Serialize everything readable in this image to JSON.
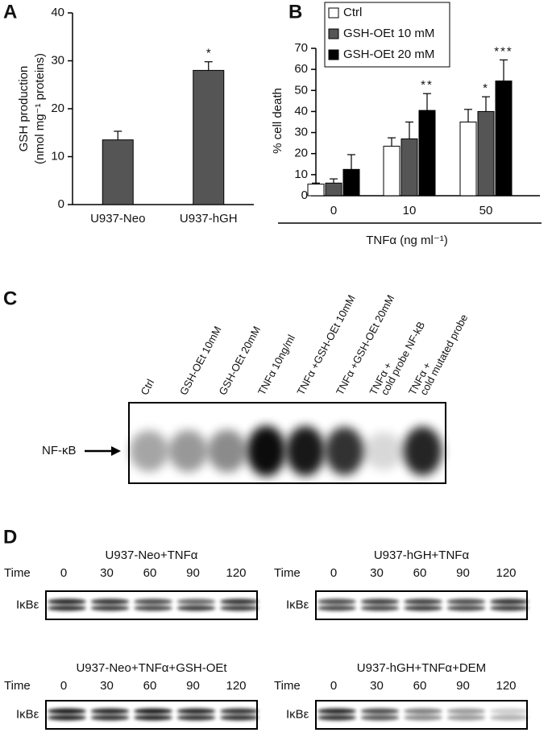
{
  "chart_data": [
    {
      "type": "bar",
      "panel": "A",
      "y_label": [
        "GSH production",
        "(nmol mg⁻¹ proteins)"
      ],
      "categories": [
        "U937-Neo",
        "U937-hGH"
      ],
      "values": [
        13.5,
        28
      ],
      "errors": [
        1.8,
        1.8
      ],
      "color": "#555555",
      "ylim": [
        0,
        40
      ],
      "yticks": [
        0,
        10,
        20,
        30,
        40
      ],
      "annotations": [
        "*"
      ]
    },
    {
      "type": "grouped-bar",
      "panel": "B",
      "y_label": "% cell death",
      "x_label": "TNFα (ng ml⁻¹)",
      "categories": [
        "0",
        "10",
        "50"
      ],
      "series": [
        {
          "name": "Ctrl",
          "color": "#ffffff",
          "values": [
            5.5,
            23.5,
            35
          ],
          "errors": [
            0.5,
            4,
            6
          ]
        },
        {
          "name": "GSH-OEt 10 mM",
          "color": "#555555",
          "values": [
            6,
            27,
            40
          ],
          "errors": [
            2,
            8,
            7
          ]
        },
        {
          "name": "GSH-OEt 20 mM",
          "color": "#000000",
          "values": [
            12.5,
            40.5,
            54.5
          ],
          "errors": [
            7,
            8,
            10
          ]
        }
      ],
      "ylim": [
        0,
        70
      ],
      "yticks": [
        0,
        10,
        20,
        30,
        40,
        50,
        60,
        70
      ],
      "annotations": [
        "**",
        "*",
        "***"
      ],
      "legend": "top-left"
    }
  ],
  "panels": {
    "C": {
      "label": "C",
      "lanes": [
        [
          "Ctrl"
        ],
        [
          "GSH-OEt 10mM"
        ],
        [
          "GSH-OEt 20mM"
        ],
        [
          "TNFα 10ng/ml"
        ],
        [
          "TNFα +GSH-OEt 10mM"
        ],
        [
          "TNFα +GSH-OEt 20mM"
        ],
        [
          "TNFα +",
          "cold probe NF-kB"
        ],
        [
          "TNFα +",
          "cold mutated probe"
        ]
      ],
      "band_label": "NF-κB"
    },
    "D": {
      "label": "D",
      "blots": [
        {
          "title": "U937-Neo+TNFα",
          "time_label": "Time",
          "times": [
            "0",
            "30",
            "60",
            "90",
            "120"
          ],
          "protein": "IκBε"
        },
        {
          "title": "U937-hGH+TNFα",
          "time_label": "Time",
          "times": [
            "0",
            "30",
            "60",
            "90",
            "120"
          ],
          "protein": "IκBε"
        },
        {
          "title": "U937-Neo+TNFα+GSH-OEt",
          "time_label": "Time",
          "times": [
            "0",
            "30",
            "60",
            "90",
            "120"
          ],
          "protein": "IκBε"
        },
        {
          "title": "U937-hGH+TNFα+DEM",
          "time_label": "Time",
          "times": [
            "0",
            "30",
            "60",
            "90",
            "120"
          ],
          "protein": "IκBε"
        }
      ]
    }
  }
}
